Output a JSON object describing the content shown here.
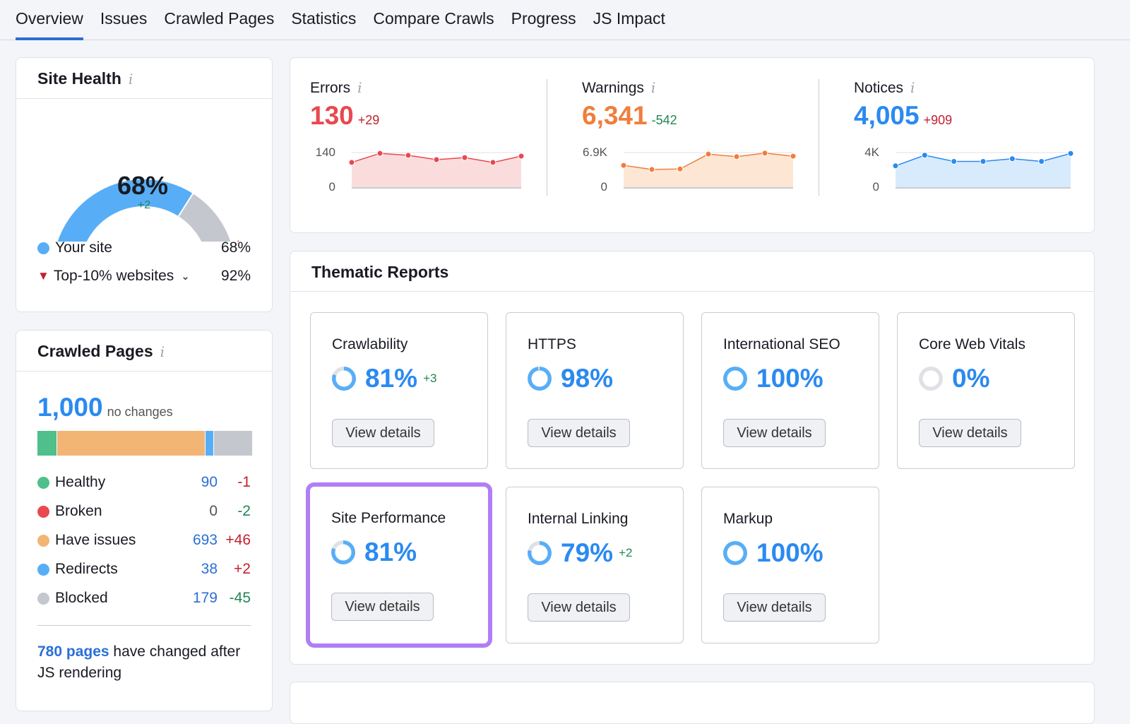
{
  "tabs": [
    "Overview",
    "Issues",
    "Crawled Pages",
    "Statistics",
    "Compare Crawls",
    "Progress",
    "JS Impact"
  ],
  "site_health": {
    "title": "Site Health",
    "score": "68%",
    "score_value": 68,
    "delta": "+2",
    "top10_value": 92,
    "legend": [
      {
        "label": "Your site",
        "value": "68%"
      },
      {
        "label": "Top-10% websites",
        "value": "92%"
      }
    ]
  },
  "crawled_pages": {
    "title": "Crawled Pages",
    "total": "1,000",
    "total_note": "no changes",
    "items": [
      {
        "label": "Healthy",
        "value": "90",
        "delta": "-1",
        "color": "#4fbf8b"
      },
      {
        "label": "Broken",
        "value": "0",
        "delta": "-2",
        "color": "#e8494f"
      },
      {
        "label": "Have issues",
        "value": "693",
        "delta": "+46",
        "color": "#f3b574"
      },
      {
        "label": "Redirects",
        "value": "38",
        "delta": "+2",
        "color": "#58aef6"
      },
      {
        "label": "Blocked",
        "value": "179",
        "delta": "-45",
        "color": "#c4c7ce"
      }
    ],
    "js_link": "780 pages",
    "js_text": " have changed after JS rendering"
  },
  "metrics": [
    {
      "label": "Errors",
      "value": "130",
      "delta": "+29",
      "color": "#e8494f",
      "fill": "#fbdcdd",
      "ymax_label": "140",
      "ymin_label": "0",
      "ymax": 140,
      "series": [
        101,
        137,
        129,
        112,
        120,
        101,
        126
      ]
    },
    {
      "label": "Warnings",
      "value": "6,341",
      "delta": "-542",
      "color": "#f07e3c",
      "fill": "#fde6d4",
      "ymax_label": "6.9K",
      "ymin_label": "0",
      "ymax": 6900,
      "series": [
        4400,
        3600,
        3700,
        6600,
        6100,
        6800,
        6200
      ]
    },
    {
      "label": "Notices",
      "value": "4,005",
      "delta": "+909",
      "color": "#2b8af0",
      "fill": "#d7ebfd",
      "ymax_label": "4K",
      "ymin_label": "0",
      "ymax": 4000,
      "series": [
        2500,
        3700,
        3000,
        3000,
        3300,
        3000,
        3900
      ]
    }
  ],
  "thematic": {
    "title": "Thematic Reports",
    "button": "View details",
    "reports": [
      {
        "name": "Crawlability",
        "value": "81%",
        "pct": 81,
        "delta": "+3"
      },
      {
        "name": "HTTPS",
        "value": "98%",
        "pct": 98,
        "delta": ""
      },
      {
        "name": "International SEO",
        "value": "100%",
        "pct": 100,
        "delta": ""
      },
      {
        "name": "Core Web Vitals",
        "value": "0%",
        "pct": 0,
        "delta": ""
      },
      {
        "name": "Site Performance",
        "value": "81%",
        "pct": 81,
        "delta": "",
        "highlighted": true
      },
      {
        "name": "Internal Linking",
        "value": "79%",
        "pct": 79,
        "delta": "+2"
      },
      {
        "name": "Markup",
        "value": "100%",
        "pct": 100,
        "delta": ""
      }
    ]
  },
  "colors": {
    "accent": "#2b6fd6",
    "highlight": "#b07ef5",
    "gauge": "#58aef6",
    "gauge_rest": "#c4c7ce",
    "marker": "#c3202f",
    "positive": "#228653",
    "negative": "#c3202f"
  }
}
